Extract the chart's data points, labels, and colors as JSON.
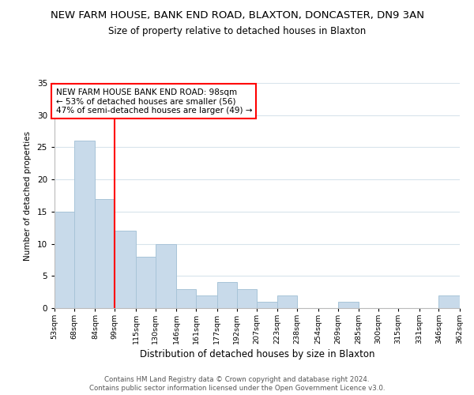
{
  "title": "NEW FARM HOUSE, BANK END ROAD, BLAXTON, DONCASTER, DN9 3AN",
  "subtitle": "Size of property relative to detached houses in Blaxton",
  "xlabel": "Distribution of detached houses by size in Blaxton",
  "ylabel": "Number of detached properties",
  "bar_color": "#c8daea",
  "bar_edge_color": "#a8c4d8",
  "bins": [
    53,
    68,
    84,
    99,
    115,
    130,
    146,
    161,
    177,
    192,
    207,
    223,
    238,
    254,
    269,
    285,
    300,
    315,
    331,
    346,
    362
  ],
  "counts": [
    15,
    26,
    17,
    12,
    8,
    10,
    3,
    2,
    4,
    3,
    1,
    2,
    0,
    0,
    1,
    0,
    0,
    0,
    0,
    2
  ],
  "ylim": [
    0,
    35
  ],
  "yticks": [
    0,
    5,
    10,
    15,
    20,
    25,
    30,
    35
  ],
  "tick_labels": [
    "53sqm",
    "68sqm",
    "84sqm",
    "99sqm",
    "115sqm",
    "130sqm",
    "146sqm",
    "161sqm",
    "177sqm",
    "192sqm",
    "207sqm",
    "223sqm",
    "238sqm",
    "254sqm",
    "269sqm",
    "285sqm",
    "300sqm",
    "315sqm",
    "331sqm",
    "346sqm",
    "362sqm"
  ],
  "property_line_x": 99,
  "annotation_line1": "NEW FARM HOUSE BANK END ROAD: 98sqm",
  "annotation_line2": "← 53% of detached houses are smaller (56)",
  "annotation_line3": "47% of semi-detached houses are larger (49) →",
  "footer_line1": "Contains HM Land Registry data © Crown copyright and database right 2024.",
  "footer_line2": "Contains public sector information licensed under the Open Government Licence v3.0.",
  "background_color": "#ffffff",
  "plot_bg_color": "#ffffff",
  "grid_color": "#d8e4ec"
}
